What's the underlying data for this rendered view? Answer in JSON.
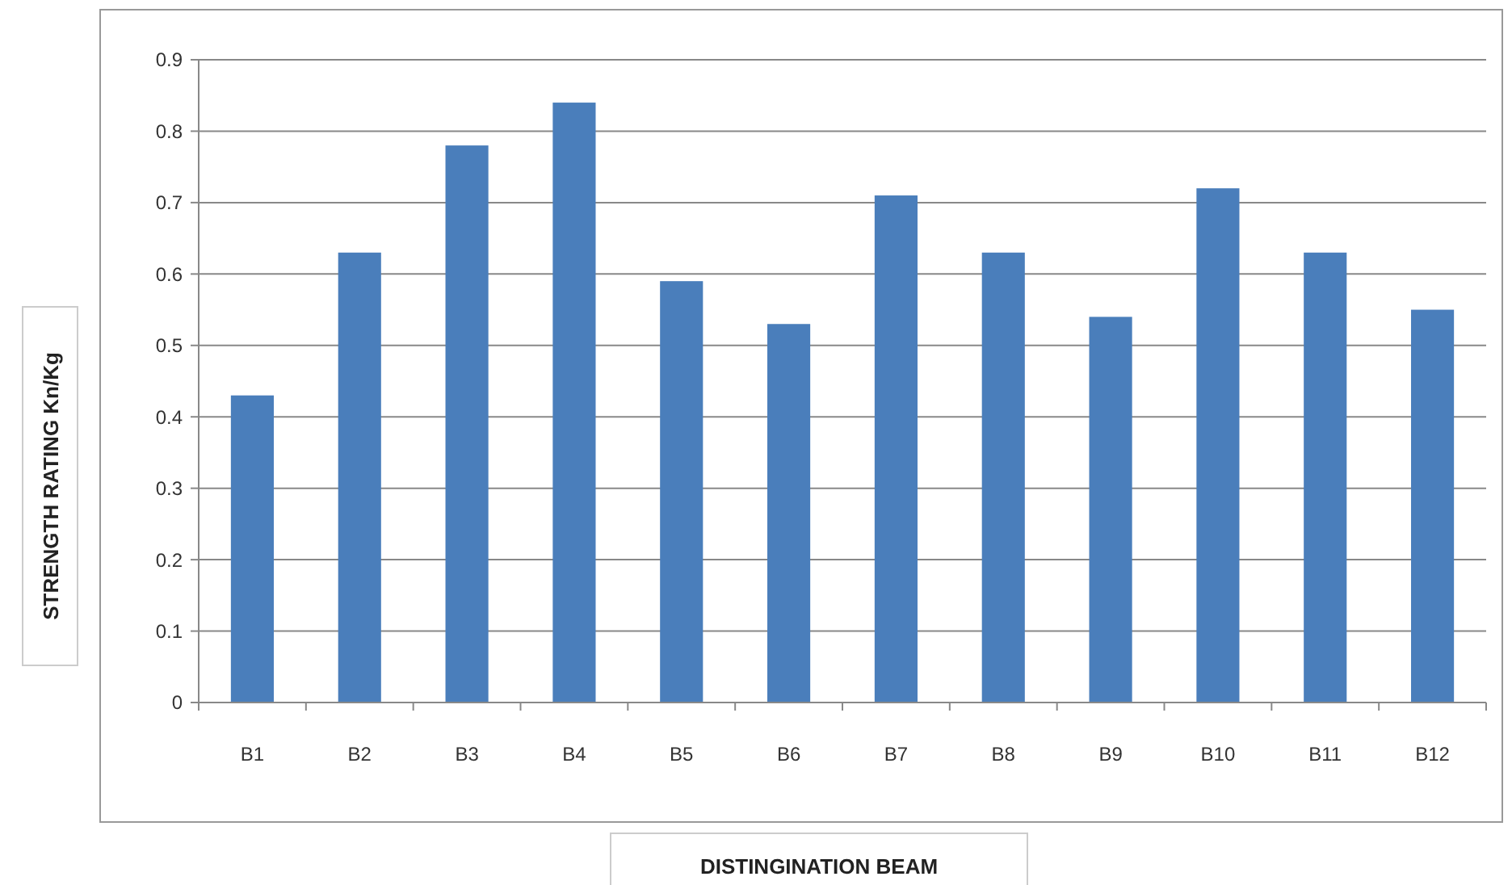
{
  "chart_data": {
    "type": "bar",
    "xlabel": "DISTINGINATION BEAM",
    "ylabel": "STRENGTH RATING Kn/Kg",
    "categories": [
      "B1",
      "B2",
      "B3",
      "B4",
      "B5",
      "B6",
      "B7",
      "B8",
      "B9",
      "B10",
      "B11",
      "B12"
    ],
    "values": [
      0.43,
      0.63,
      0.78,
      0.84,
      0.59,
      0.53,
      0.71,
      0.63,
      0.54,
      0.72,
      0.63,
      0.55
    ],
    "color": "#4a7ebb",
    "ylim": [
      0,
      0.9
    ],
    "yticks": [
      {
        "value": 0,
        "label": "0"
      },
      0.1,
      0.2,
      0.3,
      0.4,
      0.5,
      0.6,
      0.7,
      0.8,
      0.9
    ],
    "grid": "y"
  }
}
